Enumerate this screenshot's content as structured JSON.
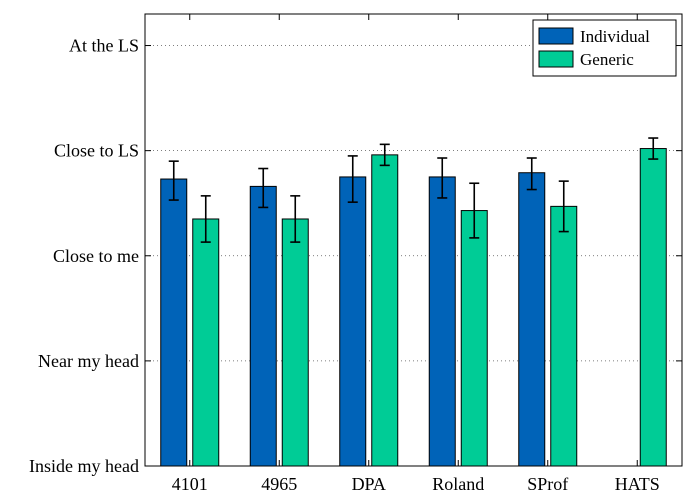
{
  "chart_data": {
    "type": "bar",
    "categories": [
      "4101",
      "4965",
      "DPA",
      "Roland",
      "SProf",
      "HATS"
    ],
    "y_tick_labels": [
      "Inside my head",
      "Near my head",
      "Close to me",
      "Close to LS",
      "At the LS"
    ],
    "ylim": [
      0,
      4.3
    ],
    "grid": "horizontal dotted",
    "legend_position": "top-right",
    "series": [
      {
        "name": "Individual",
        "color": "#0063b8",
        "values": [
          2.73,
          2.66,
          2.75,
          2.75,
          2.79,
          null
        ],
        "error_low": [
          2.53,
          2.46,
          2.51,
          2.55,
          2.63,
          null
        ],
        "error_high": [
          2.9,
          2.83,
          2.95,
          2.93,
          2.93,
          null
        ]
      },
      {
        "name": "Generic",
        "color": "#00cc96",
        "values": [
          2.35,
          2.35,
          2.96,
          2.43,
          2.47,
          3.02
        ],
        "error_low": [
          2.13,
          2.13,
          2.86,
          2.17,
          2.23,
          2.92
        ],
        "error_high": [
          2.57,
          2.57,
          3.06,
          2.69,
          2.71,
          3.12
        ]
      }
    ],
    "title": "",
    "xlabel": "",
    "ylabel": ""
  }
}
